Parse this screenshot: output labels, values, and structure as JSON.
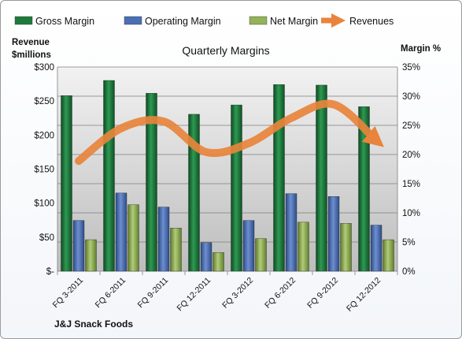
{
  "chart_data": {
    "type": "bar",
    "title": "Quarterly Margins",
    "company": "J&J Snack Foods",
    "left_axis_title": [
      "Revenue",
      "$millions"
    ],
    "right_axis_title": "Margin %",
    "categories": [
      "FQ 3-2011",
      "FQ 6-2011",
      "FQ 9-2011",
      "FQ 12-2011",
      "FQ 3-2012",
      "FQ 6-2012",
      "FQ 9-2012",
      "FQ 12-2012"
    ],
    "left_axis": {
      "min": 0,
      "max": 300,
      "step": 50,
      "tick_labels": [
        "$-",
        "$50",
        "$100",
        "$150",
        "$200",
        "$250",
        "$300"
      ]
    },
    "right_axis": {
      "min": 0,
      "max": 35,
      "step": 5,
      "tick_labels": [
        "0%",
        "5%",
        "10%",
        "15%",
        "20%",
        "25%",
        "30%",
        "35%"
      ]
    },
    "legend_position": "top",
    "series": [
      {
        "name": "Gross Margin",
        "axis": "right",
        "kind": "bar",
        "color": "#1e7a3c",
        "values": [
          30.1,
          32.7,
          30.5,
          26.9,
          28.5,
          32.0,
          31.9,
          28.2
        ]
      },
      {
        "name": "Operating Margin",
        "axis": "right",
        "kind": "bar",
        "color": "#4a6fb5",
        "values": [
          8.7,
          13.4,
          11.0,
          4.9,
          8.7,
          13.3,
          12.8,
          7.9
        ]
      },
      {
        "name": "Net Margin",
        "axis": "right",
        "kind": "bar",
        "color": "#93b357",
        "values": [
          5.4,
          11.4,
          7.4,
          3.2,
          5.6,
          8.4,
          8.2,
          5.4
        ]
      },
      {
        "name": "Revenues",
        "axis": "left",
        "kind": "line",
        "color": "#e8843c",
        "values": [
          162,
          210,
          220,
          175,
          188,
          225,
          245,
          192
        ]
      }
    ]
  }
}
